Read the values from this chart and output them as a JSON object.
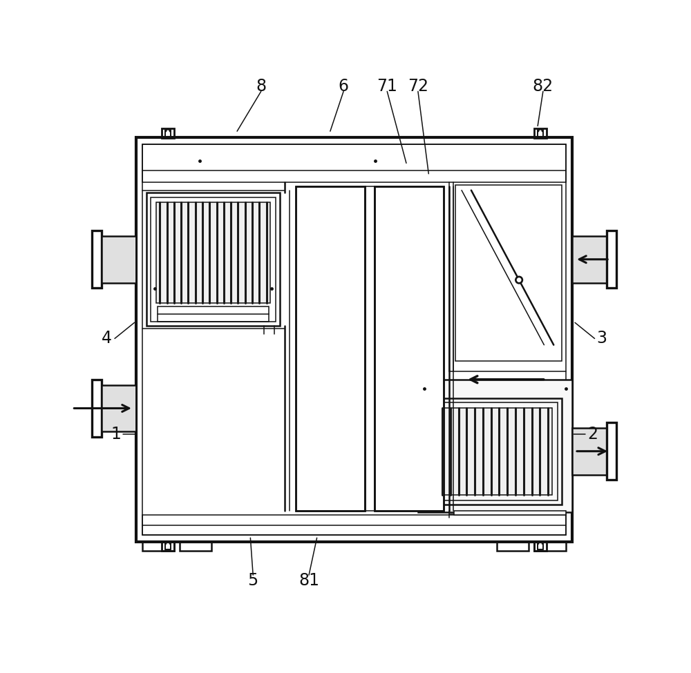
{
  "bg_color": "#ffffff",
  "line_color": "#111111",
  "fig_width": 10.0,
  "fig_height": 9.75,
  "label_fs": 17,
  "lw_outer": 3.0,
  "lw_med": 1.8,
  "lw_thin": 1.1,
  "lw_thick": 2.4
}
